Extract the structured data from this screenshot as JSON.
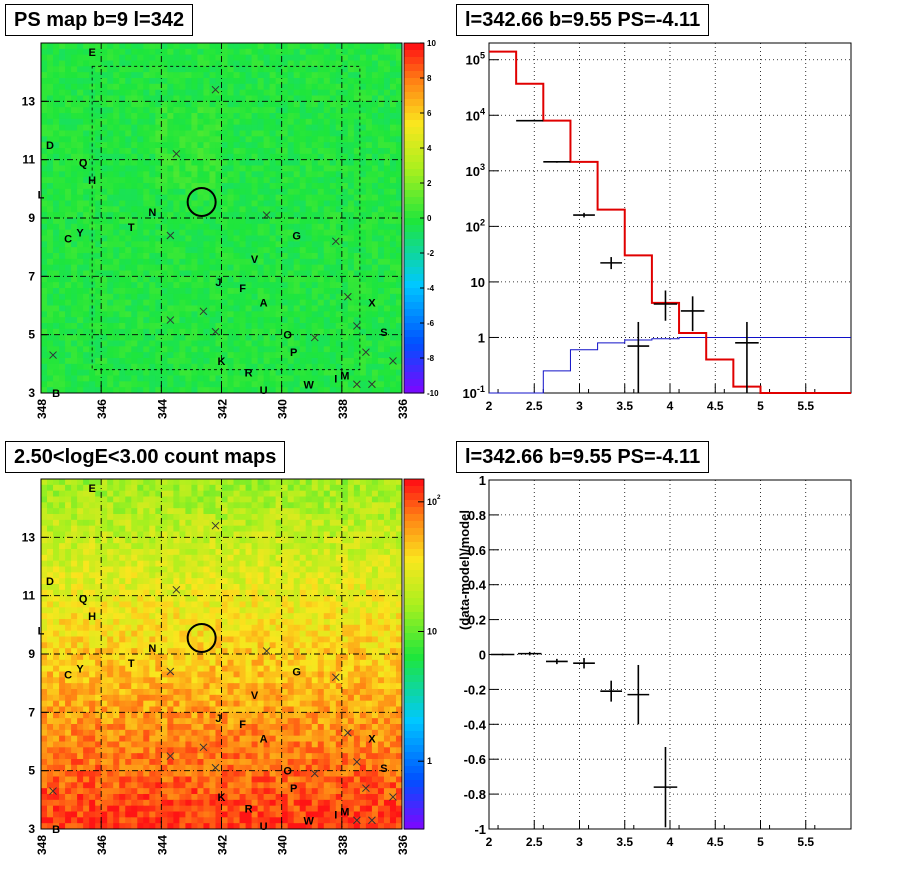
{
  "panels": {
    "ps_map": {
      "title": "PS map b=9 l=342"
    },
    "spectrum": {
      "title": "l=342.66 b=9.55 PS=-4.11"
    },
    "count_map": {
      "title": "2.50<logE<3.00 count maps"
    },
    "residual": {
      "title": "l=342.66 b=9.55 PS=-4.11"
    }
  },
  "chart_data": [
    {
      "type": "heatmap",
      "name": "PS map",
      "x_ticks": [
        "348",
        "346",
        "344",
        "342",
        "340",
        "338",
        "336"
      ],
      "y_ticks": [
        "3",
        "5",
        "7",
        "9",
        "11",
        "13"
      ],
      "xlim": [
        348,
        336
      ],
      "ylim": [
        3,
        15
      ],
      "colorbar": {
        "min": -10,
        "max": 10,
        "ticks": [
          "10",
          "8",
          "6",
          "4",
          "2",
          "0",
          "-2",
          "-4",
          "-6",
          "-8",
          "-10"
        ]
      },
      "grid": true,
      "source_labels": [
        {
          "text": "E",
          "l": 346.3,
          "b": 14.7
        },
        {
          "text": "D",
          "l": 347.7,
          "b": 11.5
        },
        {
          "text": "Q",
          "l": 346.6,
          "b": 10.9
        },
        {
          "text": "H",
          "l": 346.3,
          "b": 10.3
        },
        {
          "text": "L",
          "l": 348.0,
          "b": 9.8
        },
        {
          "text": "N",
          "l": 344.3,
          "b": 9.2
        },
        {
          "text": "T",
          "l": 345.0,
          "b": 8.7
        },
        {
          "text": "Y",
          "l": 346.7,
          "b": 8.5
        },
        {
          "text": "C",
          "l": 347.1,
          "b": 8.3
        },
        {
          "text": "G",
          "l": 339.5,
          "b": 8.4
        },
        {
          "text": "V",
          "l": 340.9,
          "b": 7.6
        },
        {
          "text": "J",
          "l": 342.1,
          "b": 6.8
        },
        {
          "text": "F",
          "l": 341.3,
          "b": 6.6
        },
        {
          "text": "A",
          "l": 340.6,
          "b": 6.1
        },
        {
          "text": "X",
          "l": 337.0,
          "b": 6.1
        },
        {
          "text": "O",
          "l": 339.8,
          "b": 5.0
        },
        {
          "text": "S",
          "l": 336.6,
          "b": 5.1
        },
        {
          "text": "P",
          "l": 339.6,
          "b": 4.4
        },
        {
          "text": "K",
          "l": 342.0,
          "b": 4.1
        },
        {
          "text": "R",
          "l": 341.1,
          "b": 3.7
        },
        {
          "text": "M",
          "l": 337.9,
          "b": 3.6
        },
        {
          "text": "I",
          "l": 338.2,
          "b": 3.5
        },
        {
          "text": "W",
          "l": 339.1,
          "b": 3.3
        },
        {
          "text": "U",
          "l": 340.6,
          "b": 3.1
        },
        {
          "text": "B",
          "l": 347.5,
          "b": 3.0
        }
      ],
      "crosses": [
        {
          "l": 342.2,
          "b": 13.4
        },
        {
          "l": 343.5,
          "b": 11.2
        },
        {
          "l": 340.5,
          "b": 9.1
        },
        {
          "l": 343.7,
          "b": 8.4
        },
        {
          "l": 338.2,
          "b": 8.2
        },
        {
          "l": 342.6,
          "b": 5.8
        },
        {
          "l": 343.7,
          "b": 5.5
        },
        {
          "l": 342.2,
          "b": 5.1
        },
        {
          "l": 337.8,
          "b": 6.3
        },
        {
          "l": 337.5,
          "b": 5.3
        },
        {
          "l": 338.9,
          "b": 4.9
        },
        {
          "l": 337.2,
          "b": 4.4
        },
        {
          "l": 336.3,
          "b": 4.1
        },
        {
          "l": 347.6,
          "b": 4.3
        },
        {
          "l": 337.5,
          "b": 3.3
        },
        {
          "l": 337.0,
          "b": 3.3
        }
      ],
      "circle": {
        "l": 342.66,
        "b": 9.55
      }
    },
    {
      "type": "line",
      "name": "spectrum",
      "xlim": [
        2,
        6
      ],
      "ylim": [
        0.1,
        200000
      ],
      "log_y": true,
      "x_ticks": [
        "2",
        "2.5",
        "3",
        "3.5",
        "4",
        "4.5",
        "5",
        "5.5"
      ],
      "y_ticks": [
        "10^-1",
        "1",
        "10",
        "10^2",
        "10^3",
        "10^4",
        "10^5"
      ],
      "grid": true,
      "red_model_edges": [
        2.0,
        2.3,
        2.6,
        2.9,
        3.2,
        3.5,
        3.8,
        4.1,
        4.4,
        4.7,
        5.0,
        6.0
      ],
      "red_model_values": [
        140000,
        37000,
        8000,
        1450,
        200,
        30,
        4.2,
        1.2,
        0.4,
        0.13,
        0.09
      ],
      "blue_model_edges": [
        2.0,
        2.6,
        2.9,
        3.2,
        3.5,
        3.8,
        4.1,
        6.0
      ],
      "blue_model_values": [
        0.06,
        0.25,
        0.6,
        0.8,
        0.9,
        0.95,
        1.0
      ],
      "data_points": [
        {
          "x": 2.45,
          "y": 8000,
          "xerr": 0.15,
          "ylo": 7800,
          "yhi": 8200
        },
        {
          "x": 2.75,
          "y": 1450,
          "xerr": 0.15,
          "ylo": 1400,
          "yhi": 1500
        },
        {
          "x": 3.05,
          "y": 160,
          "xerr": 0.12,
          "ylo": 145,
          "yhi": 175
        },
        {
          "x": 3.35,
          "y": 22,
          "xerr": 0.12,
          "ylo": 17,
          "yhi": 28
        },
        {
          "x": 3.65,
          "y": 0.7,
          "xerr": 0.12,
          "ylo": 0.1,
          "yhi": 1.9
        },
        {
          "x": 3.95,
          "y": 4.0,
          "xerr": 0.13,
          "ylo": 2.0,
          "yhi": 7.0
        },
        {
          "x": 4.25,
          "y": 3.0,
          "xerr": 0.13,
          "ylo": 1.3,
          "yhi": 5.5
        },
        {
          "x": 4.85,
          "y": 0.8,
          "xerr": 0.13,
          "ylo": 0.1,
          "yhi": 1.9
        }
      ]
    },
    {
      "type": "heatmap",
      "name": "count map",
      "x_ticks": [
        "348",
        "346",
        "344",
        "342",
        "340",
        "338",
        "336"
      ],
      "y_ticks": [
        "3",
        "5",
        "7",
        "9",
        "11",
        "13"
      ],
      "xlim": [
        348,
        336
      ],
      "ylim": [
        3,
        15
      ],
      "colorbar": {
        "log": true,
        "min": 0.3,
        "max": 150,
        "ticks": [
          "1",
          "10",
          "10^2"
        ]
      },
      "grid": true
    },
    {
      "type": "scatter",
      "name": "residual",
      "xlim": [
        2,
        6
      ],
      "ylim": [
        -1,
        1
      ],
      "ylabel": "(data-model)/model",
      "x_ticks": [
        "2",
        "2.5",
        "3",
        "3.5",
        "4",
        "4.5",
        "5",
        "5.5"
      ],
      "y_ticks": [
        "-1",
        "-0.8",
        "-0.6",
        "-0.4",
        "-0.2",
        "0",
        "0.2",
        "0.4",
        "0.6",
        "0.8",
        "1"
      ],
      "grid": true,
      "data_points": [
        {
          "x": 2.15,
          "y": 0.0,
          "xerr": 0.13,
          "yerr": 0.005
        },
        {
          "x": 2.45,
          "y": 0.005,
          "xerr": 0.13,
          "yerr": 0.01
        },
        {
          "x": 2.75,
          "y": -0.04,
          "xerr": 0.12,
          "yerr": 0.015
        },
        {
          "x": 3.05,
          "y": -0.05,
          "xerr": 0.12,
          "yerr": 0.03
        },
        {
          "x": 3.35,
          "y": -0.21,
          "xerr": 0.12,
          "yerr": 0.06
        },
        {
          "x": 3.65,
          "y": -0.23,
          "xerr": 0.12,
          "yerr": 0.17
        },
        {
          "x": 3.95,
          "y": -0.76,
          "xerr": 0.13,
          "yerr": 0.23
        }
      ]
    }
  ]
}
